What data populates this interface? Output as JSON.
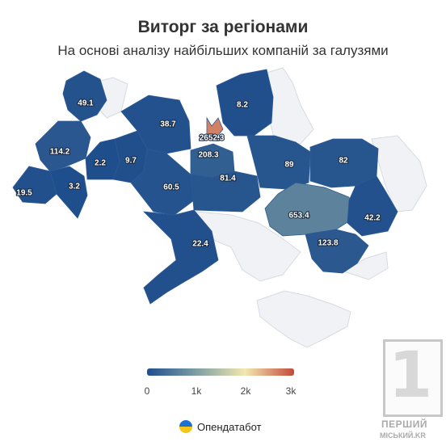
{
  "header": {
    "title": "Виторг за регіонами",
    "subtitle": "На основі аналізу найбільших компаній за галузями"
  },
  "chart_data": {
    "type": "choropleth",
    "regions": [
      {
        "label": "49.1",
        "value": 49.1
      },
      {
        "label": "114.2",
        "value": 114.2
      },
      {
        "label": "19.5",
        "value": 19.5
      },
      {
        "label": "3.2",
        "value": 3.2
      },
      {
        "label": "2.2",
        "value": 2.2
      },
      {
        "label": "9.7",
        "value": 9.7
      },
      {
        "label": "38.7",
        "value": 38.7
      },
      {
        "label": "60.5",
        "value": 60.5
      },
      {
        "label": "22.4",
        "value": 22.4
      },
      {
        "label": "208.3",
        "value": 208.3
      },
      {
        "label": "2652.3",
        "value": 2652.3
      },
      {
        "label": "81.4",
        "value": 81.4
      },
      {
        "label": "8.2",
        "value": 8.2
      },
      {
        "label": "89",
        "value": 89
      },
      {
        "label": "82",
        "value": 82
      },
      {
        "label": "653.4",
        "value": 653.4
      },
      {
        "label": "42.2",
        "value": 42.2
      },
      {
        "label": "123.8",
        "value": 123.8
      }
    ],
    "scale": {
      "min": 0,
      "max": 3000,
      "ticks": [
        "0",
        "1k",
        "2k",
        "3k"
      ],
      "colors": [
        "#1f4e8c",
        "#7c9ea4",
        "#f2e8b0",
        "#c24a3b"
      ]
    },
    "no_data_color": "#f0f2f5"
  },
  "footer": {
    "brand": "Опендатабот"
  },
  "watermark": {
    "digit": "1",
    "line1": "ПЕРШИЙ",
    "line2": "МІСЬКИЙ.KR"
  }
}
